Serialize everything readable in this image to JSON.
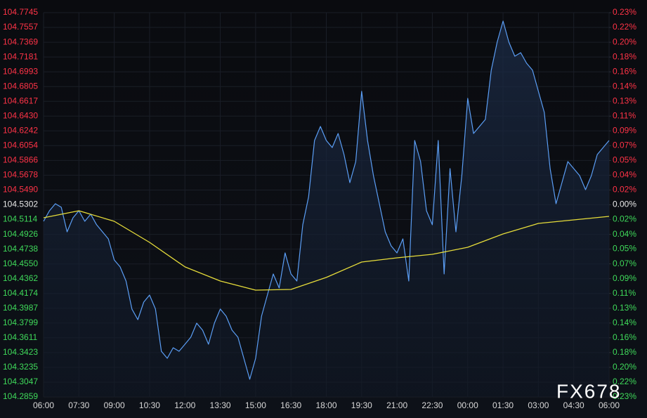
{
  "chart_data": {
    "type": "line",
    "x": [
      0,
      0.25,
      0.5,
      0.75,
      1,
      1.25,
      1.5,
      1.75,
      2,
      2.25,
      2.5,
      2.75,
      3,
      3.25,
      3.5,
      3.75,
      4,
      4.25,
      4.5,
      4.75,
      5,
      5.25,
      5.5,
      5.75,
      6,
      6.25,
      6.5,
      6.75,
      7,
      7.25,
      7.5,
      7.75,
      8,
      8.25,
      8.5,
      8.75,
      9,
      9.25,
      9.5,
      9.75,
      10,
      10.25,
      10.5,
      10.75,
      11,
      11.25,
      11.5,
      11.75,
      12,
      12.25,
      12.5,
      12.75,
      13,
      13.25,
      13.5,
      13.75,
      14,
      14.25,
      14.5,
      14.75,
      15,
      15.25,
      15.5,
      15.75,
      16,
      16.25,
      16.5,
      16.75,
      17,
      17.25,
      17.5,
      17.75,
      18,
      18.25,
      18.5,
      18.75,
      19,
      19.25,
      19.5,
      19.75,
      20,
      20.25,
      20.5,
      20.75,
      21,
      21.25,
      21.5,
      21.75,
      22,
      22.25,
      22.5,
      22.75,
      23,
      23.25,
      23.5,
      23.75,
      24
    ],
    "xlim": [
      0,
      24
    ],
    "xticks": [
      {
        "value": 0,
        "label": "06:00"
      },
      {
        "value": 1.5,
        "label": "07:30"
      },
      {
        "value": 3,
        "label": "09:00"
      },
      {
        "value": 4.5,
        "label": "10:30"
      },
      {
        "value": 6,
        "label": "12:00"
      },
      {
        "value": 7.5,
        "label": "13:30"
      },
      {
        "value": 9,
        "label": "15:00"
      },
      {
        "value": 10.5,
        "label": "16:30"
      },
      {
        "value": 12,
        "label": "18:00"
      },
      {
        "value": 13.5,
        "label": "19:30"
      },
      {
        "value": 15,
        "label": "21:00"
      },
      {
        "value": 16.5,
        "label": "22:30"
      },
      {
        "value": 18,
        "label": "00:00"
      },
      {
        "value": 19.5,
        "label": "01:30"
      },
      {
        "value": 21,
        "label": "03:00"
      },
      {
        "value": 22.5,
        "label": "04:30"
      },
      {
        "value": 24,
        "label": "06:00"
      }
    ],
    "ylim": [
      104.2859,
      104.7745
    ],
    "yticks": [
      104.2859,
      104.3047,
      104.3235,
      104.3423,
      104.3611,
      104.3799,
      104.3987,
      104.4174,
      104.4362,
      {
        "value": 104.455,
        "label": "104.4550"
      },
      104.4738,
      104.4926,
      104.5114,
      104.5302,
      {
        "value": 104.549,
        "label": "104.5490"
      },
      104.5678,
      104.5866,
      104.6054,
      104.6242,
      {
        "value": 104.643,
        "label": "104.6430"
      },
      104.6617,
      104.6805,
      104.6993,
      104.7181,
      104.7369,
      104.7557,
      104.7745
    ],
    "y2lim": [
      -0.2338,
      0.2338
    ],
    "y2ticks": [
      {
        "value": -0.2338,
        "label": "0.23%"
      },
      {
        "value": -0.2158,
        "label": "0.22%"
      },
      {
        "value": -0.1978,
        "label": "0.20%"
      },
      {
        "value": -0.1798,
        "label": "0.18%"
      },
      {
        "value": -0.1618,
        "label": "0.16%"
      },
      {
        "value": -0.1439,
        "label": "0.14%"
      },
      {
        "value": -0.1259,
        "label": "0.13%"
      },
      {
        "value": -0.1079,
        "label": "0.11%"
      },
      {
        "value": -0.0899,
        "label": "0.09%"
      },
      {
        "value": -0.0719,
        "label": "0.07%"
      },
      {
        "value": -0.0539,
        "label": "0.05%"
      },
      {
        "value": -0.036,
        "label": "0.04%"
      },
      {
        "value": -0.018,
        "label": "0.02%"
      },
      {
        "value": 0,
        "label": "0.00%"
      },
      {
        "value": 0.018,
        "label": "0.02%"
      },
      {
        "value": 0.036,
        "label": "0.04%"
      },
      {
        "value": 0.0539,
        "label": "0.05%"
      },
      {
        "value": 0.0719,
        "label": "0.07%"
      },
      {
        "value": 0.0899,
        "label": "0.09%"
      },
      {
        "value": 0.1079,
        "label": "0.11%"
      },
      {
        "value": 0.1259,
        "label": "0.13%"
      },
      {
        "value": 0.1439,
        "label": "0.14%"
      },
      {
        "value": 0.1618,
        "label": "0.16%"
      },
      {
        "value": 0.1798,
        "label": "0.18%"
      },
      {
        "value": 0.1978,
        "label": "0.20%"
      },
      {
        "value": 0.2158,
        "label": "0.22%"
      },
      {
        "value": 0.2338,
        "label": "0.23%"
      }
    ],
    "base": 104.5302,
    "up_color": "#ff3347",
    "down_color": "#3fd95a",
    "grid": true,
    "series": [
      {
        "color": "#5b9ef5",
        "values": [
          104.5092,
          104.5226,
          104.5315,
          104.5271,
          104.4958,
          104.5137,
          104.5226,
          104.5092,
          104.5182,
          104.5048,
          104.4958,
          104.4869,
          104.4601,
          104.4512,
          104.4333,
          104.3976,
          104.3842,
          104.4065,
          104.4154,
          104.3976,
          104.344,
          104.335,
          104.3484,
          104.344,
          104.3529,
          104.3618,
          104.3797,
          104.3708,
          104.3529,
          104.3797,
          104.3976,
          104.3886,
          104.3708,
          104.3618,
          104.335,
          104.3083,
          104.335,
          104.3886,
          104.4154,
          104.4422,
          104.4244,
          104.469,
          104.4422,
          104.4333,
          104.5048,
          104.5405,
          104.6119,
          104.6298,
          104.6119,
          104.603,
          104.6209,
          104.5941,
          104.5583,
          104.5851,
          104.6745,
          104.6119,
          104.5673,
          104.5315,
          104.4958,
          104.478,
          104.469,
          104.4869,
          104.4333,
          104.6119,
          104.5851,
          104.5226,
          104.5048,
          104.6119,
          104.4422,
          104.5762,
          104.4958,
          104.5673,
          104.6655,
          104.6209,
          104.6298,
          104.6387,
          104.7013,
          104.737,
          104.7638,
          104.737,
          104.7191,
          104.7236,
          104.7102,
          104.7013,
          104.6745,
          104.6477,
          104.5762,
          104.5315,
          104.5583,
          104.5851,
          104.5762,
          104.5673,
          104.5494,
          104.5673,
          104.5941,
          104.603,
          104.6119
        ]
      },
      {
        "color": "#e6dc3a",
        "x": [
          0,
          1.5,
          3,
          4.5,
          6,
          7.5,
          9,
          10.5,
          12,
          13.5,
          15,
          16.5,
          18,
          19.5,
          21,
          22.5,
          24
        ],
        "values": [
          104.5137,
          104.5226,
          104.5092,
          104.4824,
          104.4512,
          104.4333,
          104.4217,
          104.4226,
          104.4378,
          104.4574,
          104.4628,
          104.4672,
          104.4762,
          104.4931,
          104.5065,
          104.511,
          104.5155
        ]
      }
    ],
    "watermark": "FX678"
  }
}
